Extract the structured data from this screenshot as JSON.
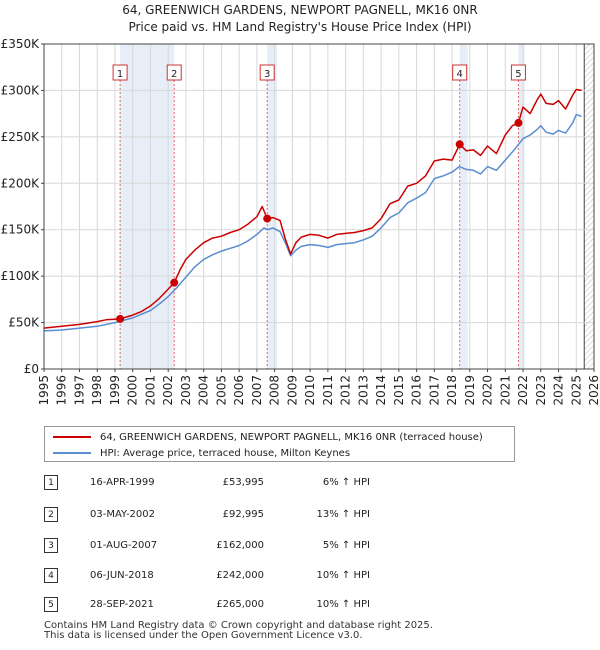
{
  "chart_data": {
    "type": "line",
    "title": "64, GREENWICH GARDENS, NEWPORT PAGNELL, MK16 0NR",
    "subtitle": "Price paid vs. HM Land Registry's House Price Index (HPI)",
    "xlabel": "",
    "ylabel": "",
    "xlim": [
      1995,
      2026
    ],
    "ylim": [
      0,
      350000
    ],
    "x_ticks": [
      "1995",
      "1996",
      "1997",
      "1998",
      "1999",
      "2000",
      "2001",
      "2002",
      "2003",
      "2004",
      "2005",
      "2006",
      "2007",
      "2008",
      "2009",
      "2010",
      "2011",
      "2012",
      "2013",
      "2014",
      "2015",
      "2016",
      "2017",
      "2018",
      "2019",
      "2020",
      "2021",
      "2022",
      "2023",
      "2024",
      "2025",
      "2026"
    ],
    "y_ticks": [
      {
        "value": 0,
        "label": "£0"
      },
      {
        "value": 50000,
        "label": "£50K"
      },
      {
        "value": 100000,
        "label": "£100K"
      },
      {
        "value": 150000,
        "label": "£150K"
      },
      {
        "value": 200000,
        "label": "£200K"
      },
      {
        "value": 250000,
        "label": "£250K"
      },
      {
        "value": 300000,
        "label": "£300K"
      },
      {
        "value": 350000,
        "label": "£350K"
      }
    ],
    "grid": true,
    "series": [
      {
        "name": "64, GREENWICH GARDENS, NEWPORT PAGNELL, MK16 0NR (terraced house)",
        "color": "#cc0000",
        "x": [
          1995.0,
          1996.0,
          1997.0,
          1998.0,
          1998.5,
          1999.29,
          2000.0,
          2000.5,
          2001.0,
          2001.5,
          2002.0,
          2002.34,
          2002.7,
          2003.0,
          2003.5,
          2004.0,
          2004.5,
          2005.0,
          2005.5,
          2006.0,
          2006.5,
          2007.0,
          2007.3,
          2007.58,
          2007.9,
          2008.3,
          2008.6,
          2008.9,
          2009.2,
          2009.5,
          2010.0,
          2010.5,
          2011.0,
          2011.5,
          2012.0,
          2012.5,
          2013.0,
          2013.5,
          2014.0,
          2014.5,
          2015.0,
          2015.5,
          2016.0,
          2016.5,
          2017.0,
          2017.5,
          2018.0,
          2018.43,
          2018.8,
          2019.2,
          2019.6,
          2020.0,
          2020.5,
          2021.0,
          2021.4,
          2021.74,
          2022.0,
          2022.4,
          2022.8,
          2023.0,
          2023.3,
          2023.7,
          2024.0,
          2024.4,
          2024.8,
          2025.0,
          2025.3
        ],
        "values": [
          44000,
          46000,
          48000,
          51000,
          53000,
          53995,
          58000,
          62000,
          68000,
          76000,
          86000,
          92995,
          108000,
          118000,
          128000,
          136000,
          141000,
          143000,
          147000,
          150000,
          156000,
          164000,
          175000,
          162000,
          163000,
          160000,
          140000,
          124000,
          136000,
          142000,
          145000,
          144000,
          141000,
          145000,
          146000,
          147000,
          149000,
          152000,
          162000,
          178000,
          182000,
          197000,
          200000,
          208000,
          224000,
          226000,
          225000,
          242000,
          235000,
          236000,
          230000,
          240000,
          232000,
          252000,
          262000,
          265000,
          282000,
          275000,
          290000,
          296000,
          286000,
          285000,
          289000,
          280000,
          295000,
          301000,
          300000
        ]
      },
      {
        "name": "HPI: Average price, terraced house, Milton Keynes",
        "color": "#5b8ed0",
        "x": [
          1995.0,
          1996.0,
          1997.0,
          1998.0,
          1999.0,
          2000.0,
          2000.5,
          2001.0,
          2001.5,
          2002.0,
          2002.5,
          2003.0,
          2003.5,
          2004.0,
          2004.5,
          2005.0,
          2005.5,
          2006.0,
          2006.5,
          2007.0,
          2007.4,
          2007.6,
          2007.9,
          2008.3,
          2008.6,
          2008.9,
          2009.2,
          2009.5,
          2010.0,
          2010.5,
          2011.0,
          2011.5,
          2012.0,
          2012.5,
          2013.0,
          2013.5,
          2014.0,
          2014.5,
          2015.0,
          2015.5,
          2016.0,
          2016.5,
          2017.0,
          2017.5,
          2018.0,
          2018.4,
          2018.8,
          2019.2,
          2019.6,
          2020.0,
          2020.5,
          2021.0,
          2021.5,
          2022.0,
          2022.4,
          2022.8,
          2023.0,
          2023.3,
          2023.7,
          2024.0,
          2024.4,
          2024.8,
          2025.0,
          2025.3
        ],
        "values": [
          41000,
          42000,
          44000,
          46000,
          50000,
          55000,
          59000,
          63000,
          70000,
          78000,
          88000,
          99000,
          110000,
          118000,
          123000,
          127000,
          130000,
          133000,
          138000,
          145000,
          152000,
          150000,
          152000,
          148000,
          136000,
          122000,
          128000,
          132000,
          134000,
          133000,
          131000,
          134000,
          135000,
          136000,
          139000,
          143000,
          152000,
          163000,
          168000,
          179000,
          184000,
          190000,
          205000,
          208000,
          212000,
          218000,
          215000,
          214000,
          210000,
          218000,
          214000,
          225000,
          236000,
          248000,
          252000,
          258000,
          262000,
          255000,
          253000,
          257000,
          254000,
          265000,
          274000,
          272000
        ]
      }
    ],
    "markers": [
      {
        "id": "1",
        "x": 1999.29,
        "value": 53995
      },
      {
        "id": "2",
        "x": 2002.34,
        "value": 92995
      },
      {
        "id": "3",
        "x": 2007.58,
        "value": 162000
      },
      {
        "id": "4",
        "x": 2018.43,
        "value": 242000
      },
      {
        "id": "5",
        "x": 2021.74,
        "value": 265000
      }
    ],
    "hatched_from": 2025.45
  },
  "legend": {
    "property_label": "64, GREENWICH GARDENS, NEWPORT PAGNELL, MK16 0NR (terraced house)",
    "hpi_label": "HPI: Average price, terraced house, Milton Keynes",
    "property_color": "#cc0000",
    "hpi_color": "#5b8ed0"
  },
  "transactions": [
    {
      "num": "1",
      "date": "16-APR-1999",
      "price": "£53,995",
      "hpi": "6% ↑ HPI"
    },
    {
      "num": "2",
      "date": "03-MAY-2002",
      "price": "£92,995",
      "hpi": "13% ↑ HPI"
    },
    {
      "num": "3",
      "date": "01-AUG-2007",
      "price": "£162,000",
      "hpi": "5% ↑ HPI"
    },
    {
      "num": "4",
      "date": "06-JUN-2018",
      "price": "£242,000",
      "hpi": "10% ↑ HPI"
    },
    {
      "num": "5",
      "date": "28-SEP-2021",
      "price": "£265,000",
      "hpi": "10% ↑ HPI"
    }
  ],
  "footer": {
    "line1": "Contains HM Land Registry data © Crown copyright and database right 2025.",
    "line2": "This data is licensed under the Open Government Licence v3.0."
  }
}
